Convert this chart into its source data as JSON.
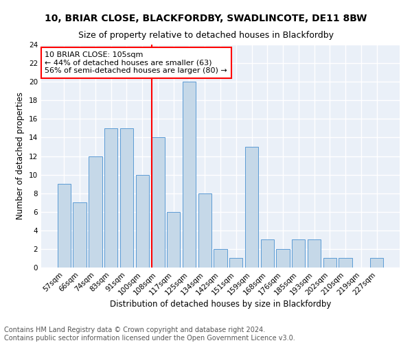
{
  "title1": "10, BRIAR CLOSE, BLACKFORDBY, SWADLINCOTE, DE11 8BW",
  "title2": "Size of property relative to detached houses in Blackfordby",
  "xlabel": "Distribution of detached houses by size in Blackfordby",
  "ylabel": "Number of detached properties",
  "footnote1": "Contains HM Land Registry data © Crown copyright and database right 2024.",
  "footnote2": "Contains public sector information licensed under the Open Government Licence v3.0.",
  "bar_labels": [
    "57sqm",
    "66sqm",
    "74sqm",
    "83sqm",
    "91sqm",
    "100sqm",
    "108sqm",
    "117sqm",
    "125sqm",
    "134sqm",
    "142sqm",
    "151sqm",
    "159sqm",
    "168sqm",
    "176sqm",
    "185sqm",
    "193sqm",
    "202sqm",
    "210sqm",
    "219sqm",
    "227sqm"
  ],
  "bar_values": [
    9,
    7,
    12,
    15,
    15,
    10,
    14,
    6,
    20,
    8,
    2,
    1,
    13,
    3,
    2,
    3,
    3,
    1,
    1,
    0,
    1
  ],
  "bar_color": "#c5d8e8",
  "bar_edgecolor": "#5b9bd5",
  "annotation_text": "10 BRIAR CLOSE: 105sqm\n← 44% of detached houses are smaller (63)\n56% of semi-detached houses are larger (80) →",
  "annotation_box_color": "white",
  "annotation_box_edgecolor": "red",
  "vline_color": "red",
  "ylim": [
    0,
    24
  ],
  "yticks": [
    0,
    2,
    4,
    6,
    8,
    10,
    12,
    14,
    16,
    18,
    20,
    22,
    24
  ],
  "bg_color": "#eaf0f8",
  "grid_color": "white",
  "title1_fontsize": 10,
  "title2_fontsize": 9,
  "xlabel_fontsize": 8.5,
  "ylabel_fontsize": 8.5,
  "annotation_fontsize": 8,
  "footnote_fontsize": 7,
  "tick_fontsize": 7.5
}
